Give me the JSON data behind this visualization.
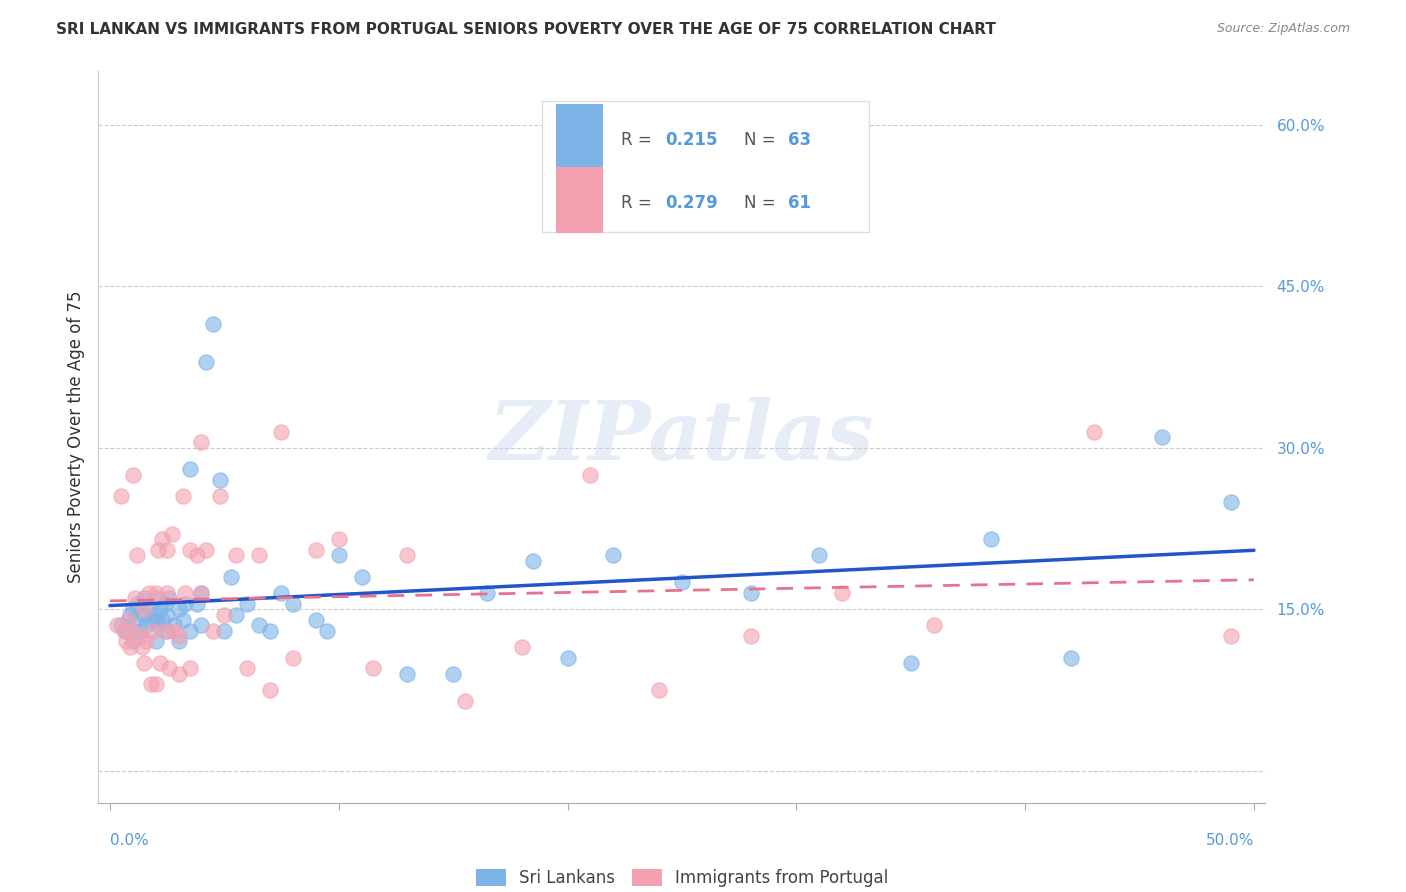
{
  "title": "SRI LANKAN VS IMMIGRANTS FROM PORTUGAL SENIORS POVERTY OVER THE AGE OF 75 CORRELATION CHART",
  "source": "Source: ZipAtlas.com",
  "ylabel": "Seniors Poverty Over the Age of 75",
  "xlabel": "",
  "xlim": [
    -0.005,
    0.505
  ],
  "ylim": [
    -0.03,
    0.65
  ],
  "xticks": [
    0.0,
    0.1,
    0.2,
    0.3,
    0.4,
    0.5
  ],
  "yticks": [
    0.0,
    0.15,
    0.3,
    0.45,
    0.6
  ],
  "xlabels_edge": [
    "0.0%",
    "50.0%"
  ],
  "xlabels_edge_pos": [
    0.0,
    0.5
  ],
  "yticklabels": [
    "",
    "15.0%",
    "30.0%",
    "45.0%",
    "60.0%"
  ],
  "watermark": "ZIPatlas",
  "series1_label": "Sri Lankans",
  "series2_label": "Immigrants from Portugal",
  "series1_color": "#7EB3E8",
  "series2_color": "#F4A0B0",
  "line1_color": "#2255CC",
  "line2_color": "#E87090",
  "background_color": "#FFFFFF",
  "grid_color": "#CCCCCC",
  "title_color": "#333333",
  "axis_color": "#5599DD",
  "marker_size": 120,
  "marker_alpha": 0.6,
  "legend_r1": "0.215",
  "legend_n1": "63",
  "legend_r2": "0.279",
  "legend_n2": "61",
  "sri_lankans_x": [
    0.005,
    0.007,
    0.009,
    0.01,
    0.01,
    0.011,
    0.012,
    0.013,
    0.015,
    0.015,
    0.016,
    0.017,
    0.018,
    0.019,
    0.02,
    0.02,
    0.02,
    0.021,
    0.022,
    0.023,
    0.024,
    0.025,
    0.025,
    0.026,
    0.028,
    0.03,
    0.03,
    0.032,
    0.033,
    0.035,
    0.035,
    0.038,
    0.04,
    0.04,
    0.042,
    0.045,
    0.048,
    0.05,
    0.053,
    0.055,
    0.06,
    0.065,
    0.07,
    0.075,
    0.08,
    0.09,
    0.095,
    0.1,
    0.11,
    0.13,
    0.15,
    0.165,
    0.185,
    0.2,
    0.22,
    0.25,
    0.28,
    0.31,
    0.35,
    0.385,
    0.42,
    0.46,
    0.49
  ],
  "sri_lankans_y": [
    0.135,
    0.13,
    0.145,
    0.12,
    0.15,
    0.14,
    0.155,
    0.13,
    0.145,
    0.16,
    0.135,
    0.15,
    0.14,
    0.145,
    0.12,
    0.14,
    0.16,
    0.135,
    0.15,
    0.14,
    0.155,
    0.13,
    0.145,
    0.16,
    0.135,
    0.12,
    0.15,
    0.14,
    0.155,
    0.13,
    0.28,
    0.155,
    0.135,
    0.165,
    0.38,
    0.415,
    0.27,
    0.13,
    0.18,
    0.145,
    0.155,
    0.135,
    0.13,
    0.165,
    0.155,
    0.14,
    0.13,
    0.2,
    0.18,
    0.09,
    0.09,
    0.165,
    0.195,
    0.105,
    0.2,
    0.175,
    0.165,
    0.2,
    0.1,
    0.215,
    0.105,
    0.31,
    0.25
  ],
  "portugal_x": [
    0.003,
    0.005,
    0.006,
    0.007,
    0.008,
    0.009,
    0.01,
    0.01,
    0.011,
    0.012,
    0.013,
    0.014,
    0.015,
    0.015,
    0.016,
    0.017,
    0.018,
    0.019,
    0.02,
    0.02,
    0.021,
    0.022,
    0.023,
    0.024,
    0.025,
    0.025,
    0.026,
    0.027,
    0.028,
    0.03,
    0.03,
    0.032,
    0.033,
    0.035,
    0.035,
    0.038,
    0.04,
    0.04,
    0.042,
    0.045,
    0.048,
    0.05,
    0.055,
    0.06,
    0.065,
    0.07,
    0.075,
    0.08,
    0.09,
    0.1,
    0.115,
    0.13,
    0.155,
    0.18,
    0.21,
    0.24,
    0.28,
    0.32,
    0.36,
    0.43,
    0.49
  ],
  "portugal_y": [
    0.135,
    0.255,
    0.13,
    0.12,
    0.14,
    0.115,
    0.275,
    0.13,
    0.16,
    0.2,
    0.125,
    0.115,
    0.1,
    0.15,
    0.12,
    0.165,
    0.08,
    0.13,
    0.08,
    0.165,
    0.205,
    0.1,
    0.215,
    0.13,
    0.165,
    0.205,
    0.095,
    0.22,
    0.13,
    0.09,
    0.125,
    0.255,
    0.165,
    0.205,
    0.095,
    0.2,
    0.165,
    0.305,
    0.205,
    0.13,
    0.255,
    0.145,
    0.2,
    0.095,
    0.2,
    0.075,
    0.315,
    0.105,
    0.205,
    0.215,
    0.095,
    0.2,
    0.065,
    0.115,
    0.275,
    0.075,
    0.125,
    0.165,
    0.135,
    0.315,
    0.125
  ]
}
